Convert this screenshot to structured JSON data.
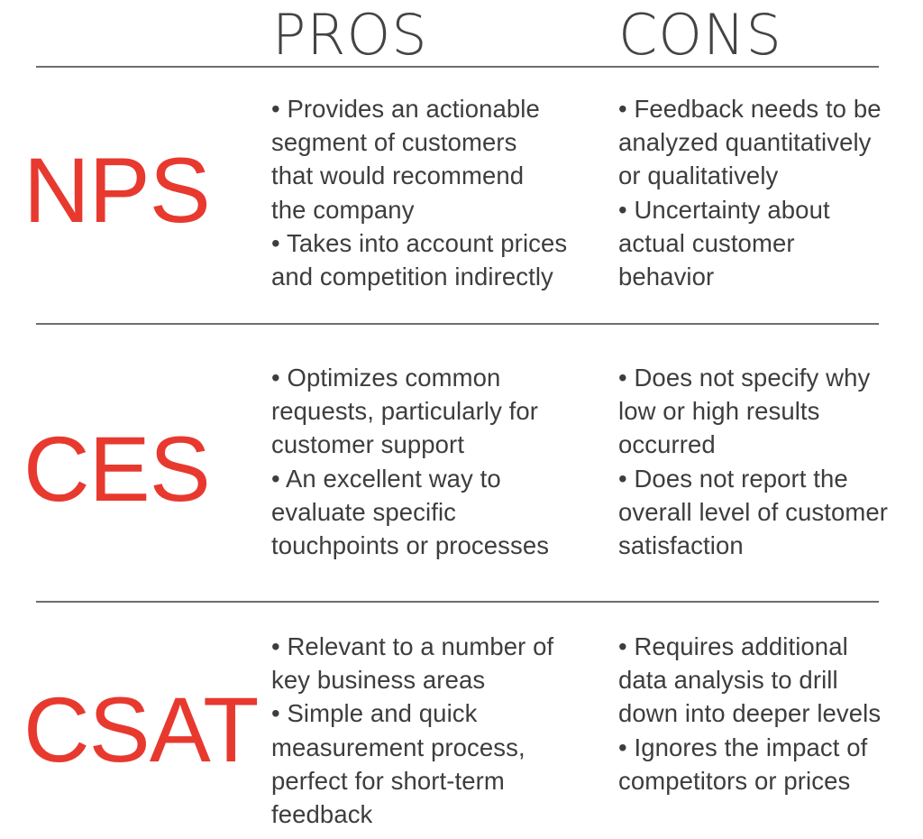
{
  "headers": {
    "pros": "PROS",
    "cons": "CONS"
  },
  "rows": [
    {
      "metric": "NPS",
      "pros": [
        "• Provides an actionable\nsegment of customers\nthat would recommend\nthe company",
        "• Takes into account prices\nand competition indirectly"
      ],
      "cons": [
        "• Feedback needs to be\nanalyzed quantitatively\nor qualitatively",
        "• Uncertainty about\nactual customer\nbehavior"
      ]
    },
    {
      "metric": "CES",
      "pros": [
        "• Optimizes common\nrequests, particularly for\ncustomer support",
        "• An excellent way to\nevaluate specific\ntouchpoints or processes"
      ],
      "cons": [
        "• Does not specify why\nlow or high results\noccurred",
        "• Does not report the\noverall level of customer\nsatisfaction"
      ]
    },
    {
      "metric": "CSAT",
      "pros": [
        "• Relevant to a number of\nkey business areas",
        "• Simple and quick\nmeasurement process,\nperfect for short-term\nfeedback"
      ],
      "cons": [
        "• Requires additional\ndata analysis to drill\ndown into deeper levels",
        "• Ignores the impact of\ncompetitors or prices"
      ]
    }
  ],
  "colors": {
    "accent": "#e8392f",
    "text": "#3d3d3d",
    "rule": "#6e6e6e"
  }
}
